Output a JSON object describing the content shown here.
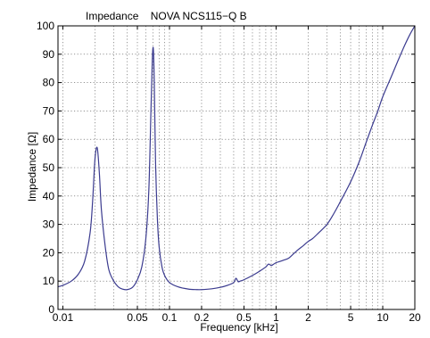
{
  "chart_data": {
    "type": "line",
    "title": "Impedance    NOVA NCS115−Q B",
    "xlabel": "Frequency [kHz]",
    "ylabel": "Impedance [Ω]",
    "x_scale": "log",
    "xlim": [
      0.009,
      20
    ],
    "ylim": [
      0,
      100
    ],
    "grid": true,
    "x_ticks": [
      0.01,
      0.05,
      0.1,
      0.2,
      0.5,
      1,
      2,
      5,
      10,
      20
    ],
    "x_tick_labels": [
      "0.01",
      "0.05",
      "0.1",
      "0.2",
      "0.5",
      "1",
      "2",
      "5",
      "10",
      "20"
    ],
    "y_ticks": [
      0,
      10,
      20,
      30,
      40,
      50,
      60,
      70,
      80,
      90,
      100
    ],
    "y_tick_labels": [
      "0",
      "10",
      "20",
      "30",
      "40",
      "50",
      "60",
      "70",
      "80",
      "90",
      "100"
    ],
    "series": [
      {
        "color": "#3b3b8f",
        "x": [
          0.009,
          0.01,
          0.012,
          0.014,
          0.016,
          0.018,
          0.019,
          0.02,
          0.021,
          0.022,
          0.023,
          0.025,
          0.027,
          0.03,
          0.033,
          0.036,
          0.04,
          0.045,
          0.05,
          0.055,
          0.06,
          0.064,
          0.067,
          0.069,
          0.0705,
          0.072,
          0.074,
          0.077,
          0.08,
          0.085,
          0.09,
          0.1,
          0.12,
          0.15,
          0.18,
          0.2,
          0.25,
          0.3,
          0.35,
          0.4,
          0.42,
          0.44,
          0.46,
          0.5,
          0.6,
          0.7,
          0.8,
          0.85,
          0.9,
          0.95,
          1,
          1.1,
          1.2,
          1.3,
          1.4,
          1.6,
          1.8,
          2,
          2.2,
          2.5,
          3,
          3.5,
          4,
          5,
          6,
          7,
          8,
          9,
          10,
          12,
          14,
          16,
          18,
          20
        ],
        "y": [
          8,
          8.5,
          10,
          12.5,
          17,
          27,
          38,
          53,
          57,
          48,
          35,
          22,
          14,
          10,
          8,
          7.2,
          7,
          7.8,
          10.5,
          15,
          25,
          42,
          70,
          88,
          92,
          80,
          52,
          32,
          22,
          15,
          12,
          9.5,
          8,
          7.2,
          7,
          7,
          7.3,
          7.8,
          8.5,
          9.5,
          11,
          9.8,
          10,
          10.5,
          12,
          13.5,
          15,
          16,
          15.5,
          16,
          16.5,
          17,
          17.5,
          18,
          19,
          21,
          22.5,
          24,
          25,
          27,
          30,
          34,
          38,
          45,
          52,
          59,
          65,
          70,
          75,
          82,
          88,
          93,
          97,
          100
        ]
      }
    ]
  }
}
